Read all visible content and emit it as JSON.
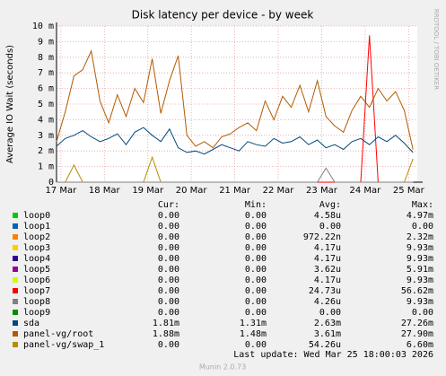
{
  "chart_data": {
    "type": "line",
    "title": "Disk latency per device - by week",
    "y_label": "Average IO Wait (seconds)",
    "side_text": "RRDTOOL / TOBI OETIKER",
    "x": [
      16.9,
      17.1,
      17.3,
      17.5,
      17.7,
      17.9,
      18.1,
      18.3,
      18.5,
      18.7,
      18.9,
      19.1,
      19.3,
      19.5,
      19.7,
      19.9,
      20.1,
      20.3,
      20.5,
      20.7,
      20.9,
      21.1,
      21.3,
      21.5,
      21.7,
      21.9,
      22.1,
      22.3,
      22.5,
      22.7,
      22.9,
      23.1,
      23.3,
      23.5,
      23.7,
      23.9,
      24.1,
      24.3,
      24.5,
      24.7,
      24.9,
      25.1
    ],
    "xlim": [
      16.9,
      25.2
    ],
    "xticks": [
      {
        "value": 17,
        "label": "17 Mar"
      },
      {
        "value": 18,
        "label": "18 Mar"
      },
      {
        "value": 19,
        "label": "19 Mar"
      },
      {
        "value": 20,
        "label": "20 Mar"
      },
      {
        "value": 21,
        "label": "21 Mar"
      },
      {
        "value": 22,
        "label": "22 Mar"
      },
      {
        "value": 23,
        "label": "23 Mar"
      },
      {
        "value": 24,
        "label": "24 Mar"
      },
      {
        "value": 25,
        "label": "25 Mar"
      }
    ],
    "ylim": [
      0,
      10
    ],
    "yticks": [
      0,
      {
        "value": 1,
        "label": "1 m"
      },
      {
        "value": 2,
        "label": "2 m"
      },
      {
        "value": 3,
        "label": "3 m"
      },
      {
        "value": 4,
        "label": "4 m"
      },
      {
        "value": 5,
        "label": "5 m"
      },
      {
        "value": 6,
        "label": "6 m"
      },
      {
        "value": 7,
        "label": "7 m"
      },
      {
        "value": 8,
        "label": "8 m"
      },
      {
        "value": 9,
        "label": "9 m"
      },
      {
        "value": 10,
        "label": "10 m"
      }
    ],
    "grid": true,
    "stat_headers": [
      "Cur:",
      "Min:",
      "Avg:",
      "Max:"
    ],
    "series": [
      {
        "name": "loop0",
        "color": "#00cc00",
        "stats": [
          "0.00",
          "0.00",
          "4.58u",
          "4.97m"
        ],
        "values": [
          0,
          0,
          0,
          0,
          0,
          0,
          0,
          0,
          0,
          0,
          0,
          0,
          0,
          0,
          0,
          0,
          0,
          0,
          0,
          0,
          0,
          0,
          0,
          0,
          0,
          0,
          0,
          0,
          0,
          0,
          0,
          0,
          0,
          0,
          0,
          0,
          0,
          0,
          0,
          0,
          0,
          0
        ]
      },
      {
        "name": "loop1",
        "color": "#0066b3",
        "stats": [
          "0.00",
          "0.00",
          "0.00",
          "0.00"
        ],
        "values": [
          0,
          0,
          0,
          0,
          0,
          0,
          0,
          0,
          0,
          0,
          0,
          0,
          0,
          0,
          0,
          0,
          0,
          0,
          0,
          0,
          0,
          0,
          0,
          0,
          0,
          0,
          0,
          0,
          0,
          0,
          0,
          0,
          0,
          0,
          0,
          0,
          0,
          0,
          0,
          0,
          0,
          0
        ]
      },
      {
        "name": "loop2",
        "color": "#ff8000",
        "stats": [
          "0.00",
          "0.00",
          "972.22n",
          "2.32m"
        ],
        "values": [
          0,
          0,
          0,
          0,
          0,
          0,
          0,
          0,
          0,
          0,
          0,
          0,
          0,
          0,
          0,
          0,
          0,
          0,
          0,
          0,
          0,
          0,
          0,
          0,
          0,
          0,
          0,
          0,
          0,
          0,
          0,
          0,
          0,
          0,
          0,
          0,
          0,
          0,
          0,
          0,
          0,
          0
        ]
      },
      {
        "name": "loop3",
        "color": "#ffcc00",
        "stats": [
          "0.00",
          "0.00",
          "4.17u",
          "9.93m"
        ],
        "values": [
          0,
          0,
          0,
          0,
          0,
          0,
          0,
          0,
          0,
          0,
          0,
          0,
          0,
          0,
          0,
          0,
          0,
          0,
          0,
          0,
          0,
          0,
          0,
          0,
          0,
          0,
          0,
          0,
          0,
          0,
          0,
          0,
          0,
          0,
          0,
          0,
          0,
          0,
          0,
          0,
          0,
          0
        ]
      },
      {
        "name": "loop4",
        "color": "#330099",
        "stats": [
          "0.00",
          "0.00",
          "4.17u",
          "9.93m"
        ],
        "values": [
          0,
          0,
          0,
          0,
          0,
          0,
          0,
          0,
          0,
          0,
          0,
          0,
          0,
          0,
          0,
          0,
          0,
          0,
          0,
          0,
          0,
          0,
          0,
          0,
          0,
          0,
          0,
          0,
          0,
          0,
          0,
          0,
          0,
          0,
          0,
          0,
          0,
          0,
          0,
          0,
          0,
          0
        ]
      },
      {
        "name": "loop5",
        "color": "#990099",
        "stats": [
          "0.00",
          "0.00",
          "3.62u",
          "5.91m"
        ],
        "values": [
          0,
          0,
          0,
          0,
          0,
          0,
          0,
          0,
          0,
          0,
          0,
          0,
          0,
          0,
          0,
          0,
          0,
          0,
          0,
          0,
          0,
          0,
          0,
          0,
          0,
          0,
          0,
          0,
          0,
          0,
          0,
          0,
          0,
          0,
          0,
          0,
          0,
          0,
          0,
          0,
          0,
          0
        ]
      },
      {
        "name": "loop6",
        "color": "#ccff00",
        "stats": [
          "0.00",
          "0.00",
          "4.17u",
          "9.93m"
        ],
        "values": [
          0,
          0,
          0,
          0,
          0,
          0,
          0,
          0,
          0,
          0,
          0,
          0,
          0,
          0,
          0,
          0,
          0,
          0,
          0,
          0,
          0,
          0,
          0,
          0,
          0,
          0,
          0,
          0,
          0,
          0,
          0,
          0,
          0,
          0,
          0,
          0,
          0,
          0,
          0,
          0,
          0,
          0
        ]
      },
      {
        "name": "loop9",
        "color": "#008f00",
        "stats": [
          "0.00",
          "0.00",
          "0.00",
          "0.00"
        ],
        "values": [
          0,
          0,
          0,
          0,
          0,
          0,
          0,
          0,
          0,
          0,
          0,
          0,
          0,
          0,
          0,
          0,
          0,
          0,
          0,
          0,
          0,
          0,
          0,
          0,
          0,
          0,
          0,
          0,
          0,
          0,
          0,
          0,
          0,
          0,
          0,
          0,
          0,
          0,
          0,
          0,
          0,
          0
        ]
      },
      {
        "name": "sda",
        "color": "#00487d",
        "stats": [
          "1.81m",
          "1.31m",
          "2.63m",
          "27.26m"
        ],
        "values": [
          2.3,
          2.8,
          3.0,
          3.3,
          2.9,
          2.6,
          2.8,
          3.1,
          2.4,
          3.2,
          3.5,
          3.0,
          2.6,
          3.4,
          2.2,
          1.9,
          2.0,
          1.8,
          2.1,
          2.4,
          2.2,
          2.0,
          2.6,
          2.4,
          2.3,
          2.8,
          2.5,
          2.6,
          2.9,
          2.4,
          2.7,
          2.2,
          2.4,
          2.1,
          2.6,
          2.8,
          2.4,
          2.9,
          2.6,
          3.0,
          2.5,
          1.9
        ]
      },
      {
        "name": "panel-vg/root",
        "color": "#b35a00",
        "stats": [
          "1.88m",
          "1.48m",
          "3.61m",
          "27.90m"
        ],
        "values": [
          2.6,
          4.5,
          6.8,
          7.2,
          8.4,
          5.2,
          3.8,
          5.6,
          4.2,
          6.0,
          5.1,
          7.9,
          4.4,
          6.5,
          8.1,
          3.0,
          2.3,
          2.6,
          2.2,
          2.9,
          3.1,
          3.5,
          3.8,
          3.3,
          5.2,
          4.0,
          5.5,
          4.8,
          6.2,
          4.5,
          6.5,
          4.2,
          3.6,
          3.2,
          4.6,
          5.5,
          4.8,
          6.0,
          5.2,
          5.8,
          4.6,
          2.1
        ]
      },
      {
        "name": "panel-vg/swap_1",
        "color": "#b38f00",
        "stats": [
          "0.00",
          "0.00",
          "54.26u",
          "6.60m"
        ],
        "values": [
          0,
          0,
          1.1,
          0,
          0,
          0,
          0,
          0,
          0,
          0,
          0,
          1.6,
          0,
          0,
          0,
          0,
          0,
          0,
          0,
          0,
          0,
          0,
          0,
          0,
          0,
          0,
          0,
          0,
          0,
          0,
          0,
          0,
          0,
          0,
          0,
          0,
          0,
          0,
          0,
          0,
          0,
          1.5
        ]
      },
      {
        "name": "loop7",
        "color": "#ff0000",
        "stats": [
          "0.00",
          "0.00",
          "24.73u",
          "56.62m"
        ],
        "values": [
          0,
          0,
          0,
          0,
          0,
          0,
          0,
          0,
          0,
          0,
          0,
          0,
          0,
          0,
          0,
          0,
          0,
          0,
          0,
          0,
          0,
          0,
          0,
          0,
          0,
          0,
          0,
          0,
          0,
          0,
          0,
          0,
          0,
          0,
          0,
          0,
          9.4,
          0,
          0,
          0,
          0,
          0
        ]
      },
      {
        "name": "loop8",
        "color": "#808080",
        "stats": [
          "0.00",
          "0.00",
          "4.26u",
          "9.93m"
        ],
        "values": [
          0,
          0,
          0,
          0,
          0,
          0,
          0,
          0,
          0,
          0,
          0,
          0,
          0,
          0,
          0,
          0,
          0,
          0,
          0,
          0,
          0,
          0,
          0,
          0,
          0,
          0,
          0,
          0,
          0,
          0,
          0,
          0.9,
          0,
          0,
          0,
          0,
          0,
          0,
          0,
          0,
          0,
          0
        ]
      }
    ],
    "legend_order": [
      0,
      1,
      2,
      3,
      4,
      5,
      6,
      11,
      12,
      7,
      8,
      9,
      10
    ],
    "last_update": "Last update: Wed Mar 25 18:00:03 2026",
    "footer": "Munin 2.0.73"
  }
}
